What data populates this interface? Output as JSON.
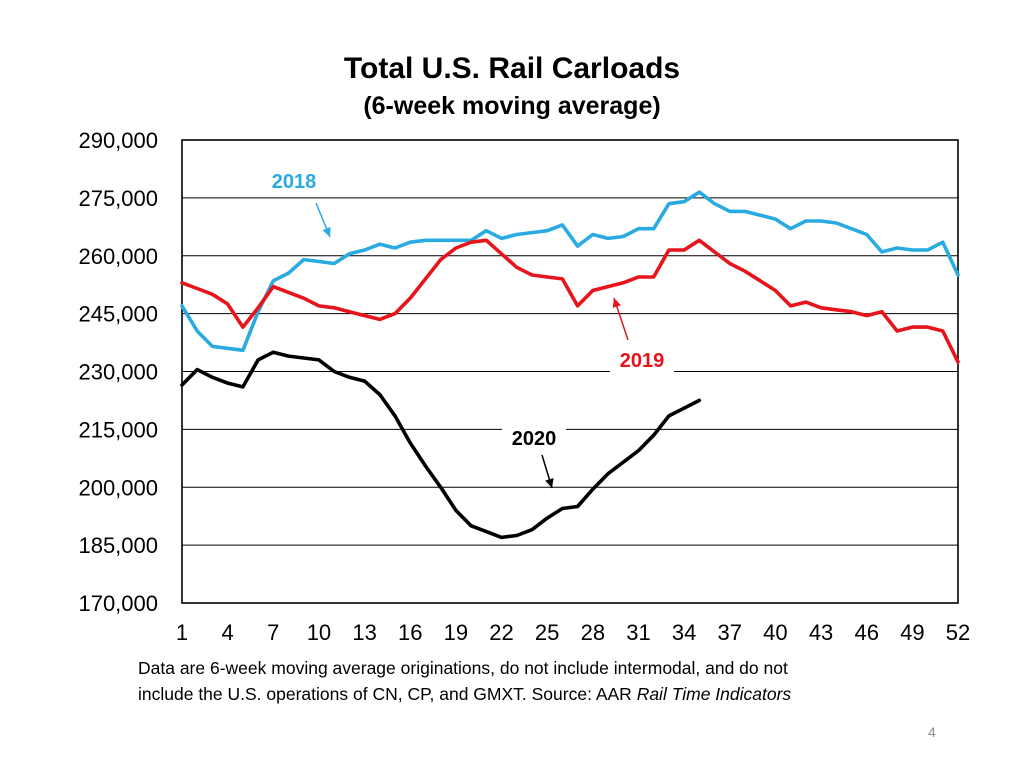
{
  "chart_data": {
    "type": "line",
    "title": "Total U.S. Rail Carloads",
    "subtitle": "(6-week moving average)",
    "xlabel": "",
    "ylabel": "",
    "xlim": [
      1,
      52
    ],
    "ylim": [
      170000,
      290000
    ],
    "y_ticks": [
      "170,000",
      "185,000",
      "200,000",
      "215,000",
      "230,000",
      "245,000",
      "260,000",
      "275,000",
      "290,000"
    ],
    "x_ticks": [
      "1",
      "4",
      "7",
      "10",
      "13",
      "16",
      "19",
      "22",
      "25",
      "28",
      "31",
      "34",
      "37",
      "40",
      "43",
      "46",
      "49",
      "52"
    ],
    "grid": true,
    "series": [
      {
        "name": "2018",
        "color": "#29abe2",
        "values": [
          247000,
          240500,
          236500,
          236000,
          235500,
          245500,
          253500,
          255500,
          259000,
          258500,
          258000,
          260500,
          261500,
          263000,
          262000,
          263500,
          264000,
          264000,
          264000,
          264000,
          266500,
          264500,
          265500,
          266000,
          266500,
          268000,
          262500,
          265500,
          264500,
          265000,
          267000,
          267000,
          273500,
          274000,
          276500,
          273500,
          271500,
          271500,
          270500,
          269500,
          267000,
          269000,
          269000,
          268500,
          267000,
          265500,
          261000,
          262000,
          261500,
          261500,
          263500,
          255000
        ]
      },
      {
        "name": "2019",
        "color": "#e8141c",
        "values": [
          253000,
          251500,
          250000,
          247500,
          241500,
          246500,
          252000,
          250500,
          249000,
          247000,
          246500,
          245500,
          244500,
          243500,
          245000,
          249000,
          254000,
          259000,
          262000,
          263500,
          264000,
          260500,
          257000,
          255000,
          254500,
          254000,
          247000,
          251000,
          252000,
          253000,
          254500,
          254500,
          261500,
          261500,
          264000,
          261000,
          258000,
          256000,
          253500,
          251000,
          247000,
          248000,
          246500,
          246000,
          245500,
          244500,
          245500,
          240500,
          241500,
          241500,
          240500,
          232500
        ]
      },
      {
        "name": "2020",
        "color": "#000000",
        "values": [
          226500,
          230500,
          228500,
          227000,
          226000,
          233000,
          235000,
          234000,
          233500,
          233000,
          230000,
          228500,
          227500,
          224000,
          218500,
          211500,
          205500,
          200000,
          194000,
          190000,
          188500,
          187000,
          187500,
          189000,
          192000,
          194500,
          195000,
          199500,
          203500,
          206500,
          209500,
          213500,
          218500,
          220500,
          222500
        ]
      }
    ],
    "annotations": [
      {
        "text": "2018",
        "series": "2018"
      },
      {
        "text": "2019",
        "series": "2019"
      },
      {
        "text": "2020",
        "series": "2020"
      }
    ]
  },
  "notes": {
    "line1": "Data are 6-week moving average originations, do not include intermodal, and do not",
    "line2_a": "include the U.S. operations of CN, CP, and GMXT.   Source: AAR ",
    "line2_b": "Rail Time Indicators"
  },
  "page_number": "4"
}
